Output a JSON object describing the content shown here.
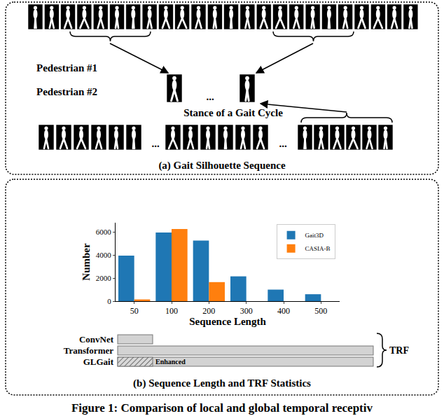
{
  "panel_a": {
    "caption": "(a) Gait Silhouette Sequence",
    "pedestrian_1": "Pedestrian #1",
    "pedestrian_2": "Pedestrian #2",
    "stance_label": "Stance of a Gait Cycle",
    "ellipsis": "..."
  },
  "panel_b": {
    "caption": "(b) Sequence Length and TRF Statistics",
    "trf": {
      "rows": [
        "ConvNet",
        "Transformer",
        "GLGait"
      ],
      "enhanced_label": "Enhanced",
      "brace_label": "TRF"
    }
  },
  "chart_data": {
    "type": "bar",
    "x_label": "Sequence Length",
    "y_label": "Number",
    "categories": [
      "50",
      "100",
      "200",
      "300",
      "400",
      "500"
    ],
    "series": [
      {
        "name": "Gait3D",
        "color": "#1f77b4",
        "values": [
          3950,
          5950,
          5250,
          2150,
          1000,
          600
        ]
      },
      {
        "name": "CASIA-B",
        "color": "#ff7f0e",
        "values": [
          150,
          6250,
          1650,
          null,
          null,
          null
        ]
      }
    ],
    "ylim": [
      0,
      6800
    ],
    "yticks": [
      0,
      2000,
      4000,
      6000
    ],
    "legend": "upper right",
    "grid": false
  },
  "figure_caption": "Figure 1: Comparison of local and global temporal receptiv"
}
